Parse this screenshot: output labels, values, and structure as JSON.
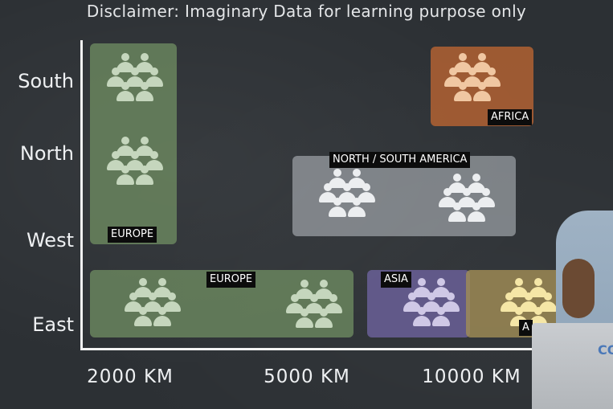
{
  "title": "Disclaimer: Imaginary Data for learning purpose only",
  "y_axis": [
    "South",
    "North",
    "West",
    "East"
  ],
  "x_axis": [
    "2000 KM",
    "5000 KM",
    "10000 KM"
  ],
  "regions": {
    "europe_vertical": "EUROPE",
    "europe_horizontal": "EUROPE",
    "africa": "AFRICA",
    "americas": "NORTH / SOUTH AMERICA",
    "asia": "ASIA",
    "australia_partial": "A"
  },
  "logo_partial": "CO",
  "colors": {
    "europe": "#5f7a55",
    "africa": "#a55c2e",
    "americas": "#8f9499",
    "asia": "#5e5586",
    "australia": "#8c7c4c"
  },
  "icons": {
    "people": "people-group-icon"
  }
}
